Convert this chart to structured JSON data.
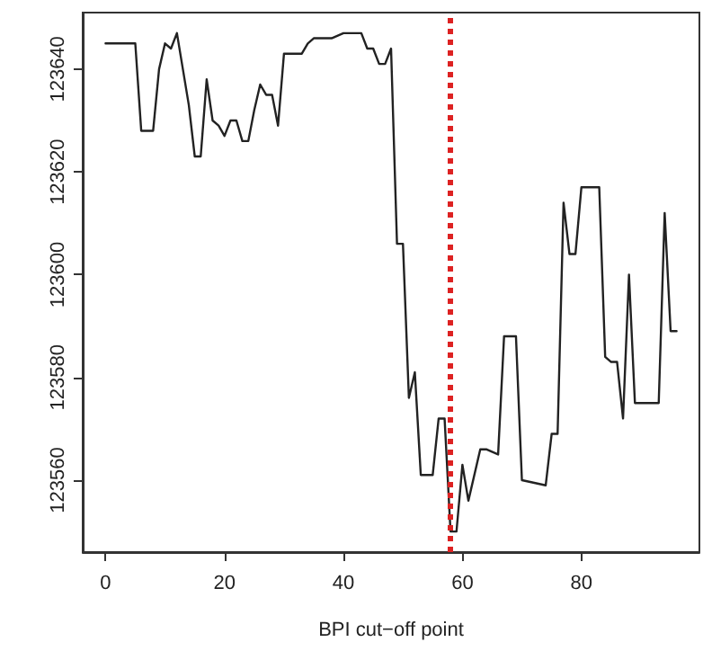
{
  "chart_data": {
    "type": "line",
    "xlabel": "BPI cut−off point",
    "xlim": [
      -3.84,
      99.84
    ],
    "xticks": [
      0,
      20,
      40,
      60,
      80
    ],
    "ylim": [
      123546,
      123651
    ],
    "yticks": [
      123560,
      123580,
      123600,
      123620,
      123640
    ],
    "grid": false,
    "marker": "none",
    "line_style": "solid",
    "series": [
      {
        "color": "#222222",
        "x": [
          0,
          5,
          6,
          8,
          9,
          10,
          11,
          12,
          13,
          14,
          15,
          16,
          17,
          18,
          19,
          20,
          21,
          22,
          23,
          24,
          25,
          26,
          27,
          28,
          29,
          30,
          33,
          34,
          35,
          38,
          40,
          43,
          44,
          45,
          46,
          47,
          48,
          49,
          50,
          51,
          52,
          53,
          55,
          56,
          57,
          58,
          59,
          60,
          61,
          63,
          64,
          66,
          67,
          69,
          70,
          74,
          75,
          76,
          77,
          78,
          79,
          80,
          83,
          84,
          85,
          86,
          87,
          88,
          89,
          93,
          94,
          95,
          96
        ],
        "values": [
          123645,
          123645,
          123628,
          123628,
          123640,
          123645,
          123644,
          123647,
          123640,
          123633,
          123623,
          123623,
          123638,
          123630,
          123629,
          123627,
          123630,
          123630,
          123626,
          123626,
          123632,
          123637,
          123635,
          123635,
          123629,
          123643,
          123643,
          123645,
          123646,
          123646,
          123647,
          123647,
          123644,
          123644,
          123641,
          123641,
          123644,
          123606,
          123606,
          123576,
          123581,
          123561,
          123561,
          123572,
          123572,
          123550,
          123550,
          123563,
          123556,
          123566,
          123566,
          123565,
          123588,
          123588,
          123560,
          123559,
          123569,
          123569,
          123614,
          123604,
          123604,
          123617,
          123617,
          123584,
          123583,
          123583,
          123572,
          123600,
          123575,
          123575,
          123612,
          123589,
          123589
        ]
      }
    ],
    "ref_lines": [
      {
        "axis": "x",
        "value": 58,
        "color": "#dd2222",
        "line_style": "dotted"
      }
    ]
  }
}
